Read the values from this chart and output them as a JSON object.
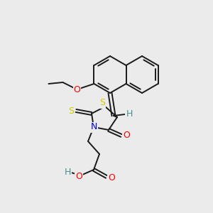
{
  "background_color": "#ebebeb",
  "bond_color": "#1a1a1a",
  "atom_colors": {
    "S": "#cccc00",
    "N": "#0000ee",
    "O": "#ff0000",
    "H_teal": "#4a9090",
    "C": "#1a1a1a"
  },
  "figsize": [
    3.0,
    3.0
  ],
  "dpi": 100
}
